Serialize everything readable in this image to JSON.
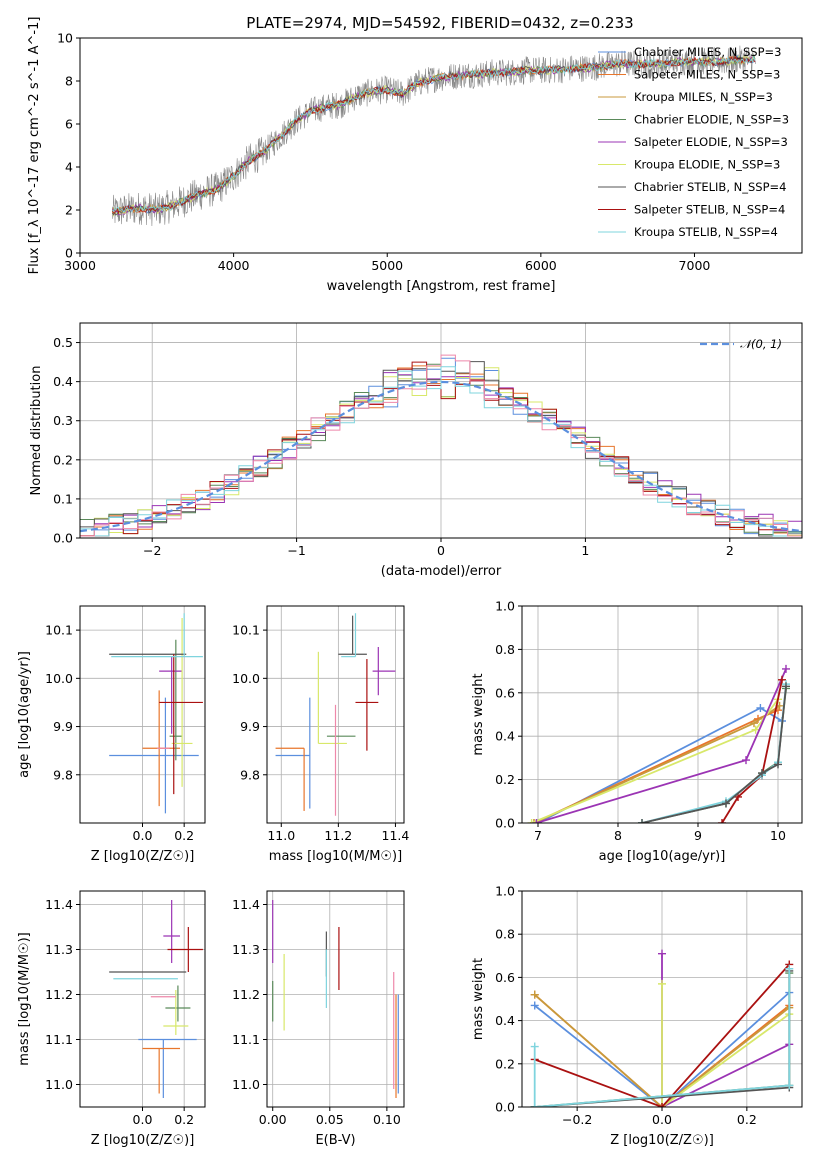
{
  "title": "PLATE=2974, MJD=54592, FIBERID=0432, z=0.233",
  "colors": {
    "blue": "#5b8fde",
    "orange": "#e8762c",
    "ochre": "#c89a3c",
    "green": "#5a8a5a",
    "purple": "#9b34b4",
    "lime": "#d8e86a",
    "gray": "#555555",
    "red": "#aa1111",
    "cyan": "#7fd4de",
    "pink": "#ee88aa",
    "spectrum": "#888888"
  },
  "chart_data": [
    {
      "id": "spectrum",
      "type": "line",
      "xlabel": "wavelength [Angstrom, rest frame]",
      "ylabel": "Flux [f_λ 10^-17 erg cm^-2 s^-1 A^-1]",
      "xlim": [
        3000,
        7700
      ],
      "ylim": [
        0,
        10
      ],
      "xticks": [
        3000,
        4000,
        5000,
        6000,
        7000
      ],
      "yticks": [
        0,
        2,
        4,
        6,
        8,
        10
      ],
      "grid": false,
      "legend_position": "right",
      "data_x_range": [
        3210,
        7400
      ],
      "anchors": {
        "x": [
          3210,
          3300,
          3400,
          3500,
          3600,
          3700,
          3800,
          3900,
          4000,
          4100,
          4200,
          4300,
          4400,
          4500,
          4600,
          4700,
          4800,
          4900,
          5000,
          5100,
          5200,
          5300,
          5400,
          5500,
          5600,
          5700,
          5800,
          5900,
          6000,
          6100,
          6200,
          6300,
          6400,
          6500,
          6600,
          6700,
          6800,
          6900,
          7000,
          7100,
          7200,
          7300,
          7400
        ],
        "y": [
          1.9,
          2.0,
          2.1,
          2.0,
          2.2,
          2.5,
          2.8,
          3.0,
          3.6,
          4.3,
          4.7,
          5.4,
          6.1,
          6.6,
          6.8,
          6.9,
          7.3,
          7.5,
          7.6,
          7.4,
          7.9,
          8.1,
          8.2,
          8.3,
          8.3,
          8.4,
          8.4,
          8.5,
          8.5,
          8.5,
          8.6,
          8.6,
          8.7,
          8.8,
          8.8,
          8.8,
          8.8,
          8.9,
          8.9,
          8.9,
          8.9,
          9.0,
          9.0
        ]
      },
      "legend": [
        {
          "label": "Chabrier MILES, N_SSP=3",
          "color": "#5b8fde"
        },
        {
          "label": "Salpeter MILES, N_SSP=3",
          "color": "#e8762c"
        },
        {
          "label": "Kroupa MILES, N_SSP=3",
          "color": "#c89a3c"
        },
        {
          "label": "Chabrier ELODIE, N_SSP=3",
          "color": "#5a8a5a"
        },
        {
          "label": "Salpeter ELODIE, N_SSP=3",
          "color": "#9b34b4"
        },
        {
          "label": "Kroupa ELODIE, N_SSP=3",
          "color": "#d8e86a"
        },
        {
          "label": "Chabrier STELIB, N_SSP=4",
          "color": "#555555"
        },
        {
          "label": "Salpeter STELIB, N_SSP=4",
          "color": "#aa1111"
        },
        {
          "label": "Kroupa STELIB, N_SSP=4",
          "color": "#7fd4de"
        }
      ]
    },
    {
      "id": "residuals",
      "type": "step",
      "xlabel": "(data-model)/error",
      "ylabel": "Normed distribution",
      "xlim": [
        -2.5,
        2.5
      ],
      "ylim": [
        0,
        0.55
      ],
      "xticks": [
        -2,
        -1,
        0,
        1,
        2
      ],
      "yticks": [
        0.0,
        0.1,
        0.2,
        0.3,
        0.4,
        0.5
      ],
      "grid": true,
      "legend": [
        {
          "label": "𝒩(0, 1)",
          "color": "#5b8fde",
          "style": "dashed"
        }
      ],
      "legend_position": "top-right",
      "bin_width": 0.1,
      "bin_start": -2.5,
      "step_colors": [
        "#5b8fde",
        "#e8762c",
        "#5a8a5a",
        "#9b34b4",
        "#d8e86a",
        "#555555",
        "#aa1111",
        "#7fd4de",
        "#ee88aa"
      ]
    },
    {
      "id": "age_vs_Z",
      "type": "errorbar",
      "xlabel": "Z [log10(Z/Z☉)]",
      "ylabel": "age  [log10(age/yr)]",
      "xlim": [
        -0.3,
        0.3
      ],
      "ylim": [
        9.7,
        10.15
      ],
      "xticks": [
        0.0,
        0.2
      ],
      "yticks": [
        9.8,
        9.9,
        10.0,
        10.1
      ],
      "grid": true,
      "points": [
        {
          "x": 0.11,
          "y": 9.84,
          "xerr": [
            0.27,
            0.16
          ],
          "yerr": [
            0.12,
            0.12
          ],
          "color": "#5b8fde"
        },
        {
          "x": 0.08,
          "y": 9.855,
          "xerr": [
            0.08,
            0.1
          ],
          "yerr": [
            0.12,
            0.12
          ],
          "color": "#e8762c"
        },
        {
          "x": 0.16,
          "y": 9.88,
          "xerr": [
            0.03,
            0.03
          ],
          "yerr": [
            0.05,
            0.2
          ],
          "color": "#5a8a5a"
        },
        {
          "x": 0.14,
          "y": 10.015,
          "xerr": [
            0.06,
            0.05
          ],
          "yerr": [
            0.13,
            0.03
          ],
          "color": "#9b34b4"
        },
        {
          "x": 0.19,
          "y": 9.865,
          "xerr": [
            0.05,
            0.05
          ],
          "yerr": [
            0.09,
            0.26
          ],
          "color": "#d8e86a"
        },
        {
          "x": 0.05,
          "y": 10.05,
          "xerr": [
            0.21,
            0.16
          ],
          "yerr": [
            0.0,
            0.0
          ],
          "color": "#555555"
        },
        {
          "x": 0.15,
          "y": 9.95,
          "xerr": [
            0.07,
            0.14
          ],
          "yerr": [
            0.19,
            0.1
          ],
          "color": "#aa1111"
        },
        {
          "x": 0.2,
          "y": 10.045,
          "xerr": [
            0.35,
            0.09
          ],
          "yerr": [
            0.0,
            0.09
          ],
          "color": "#7fd4de"
        },
        {
          "x": 0.1,
          "y": 9.855,
          "xerr": [
            0.03,
            0.03
          ],
          "yerr": [
            0.0,
            0.0
          ],
          "color": "#ee88aa"
        }
      ]
    },
    {
      "id": "age_vs_mass",
      "type": "errorbar",
      "xlabel": "mass [log10(M/M☉)]",
      "xlim": [
        10.95,
        11.43
      ],
      "ylim": [
        9.7,
        10.15
      ],
      "xticks": [
        11.0,
        11.2,
        11.4
      ],
      "yticks": [
        9.8,
        9.9,
        10.0,
        10.1
      ],
      "grid": true,
      "points": [
        {
          "x": 11.1,
          "y": 9.84,
          "xerr": [
            0.12,
            0.0
          ],
          "yerr": [
            0.11,
            0.12
          ],
          "color": "#5b8fde"
        },
        {
          "x": 11.08,
          "y": 9.855,
          "xerr": [
            0.1,
            0.0
          ],
          "yerr": [
            0.13,
            0.0
          ],
          "color": "#e8762c"
        },
        {
          "x": 11.2,
          "y": 9.88,
          "xerr": [
            0.04,
            0.06
          ],
          "yerr": [
            0.0,
            0.0
          ],
          "color": "#5a8a5a"
        },
        {
          "x": 11.34,
          "y": 10.015,
          "xerr": [
            0.02,
            0.06
          ],
          "yerr": [
            0.05,
            0.05
          ],
          "color": "#9b34b4"
        },
        {
          "x": 11.13,
          "y": 9.865,
          "xerr": [
            0.0,
            0.1
          ],
          "yerr": [
            0.0,
            0.19
          ],
          "color": "#d8e86a"
        },
        {
          "x": 11.25,
          "y": 10.05,
          "xerr": [
            0.05,
            0.05
          ],
          "yerr": [
            0.0,
            0.08
          ],
          "color": "#555555"
        },
        {
          "x": 11.3,
          "y": 9.95,
          "xerr": [
            0.04,
            0.04
          ],
          "yerr": [
            0.1,
            0.09
          ],
          "color": "#aa1111"
        },
        {
          "x": 11.26,
          "y": 10.045,
          "xerr": [
            0.05,
            0.0
          ],
          "yerr": [
            0.0,
            0.09
          ],
          "color": "#7fd4de"
        },
        {
          "x": 11.19,
          "y": 9.855,
          "xerr": [
            0.0,
            0.0
          ],
          "yerr": [
            0.14,
            0.09
          ],
          "color": "#ee88aa"
        }
      ]
    },
    {
      "id": "mass_weight_vs_age",
      "type": "line",
      "xlabel": "age  [log10(age/yr)]",
      "ylabel": "mass weight",
      "xlim": [
        6.8,
        10.3
      ],
      "ylim": [
        0,
        1
      ],
      "xticks": [
        7,
        8,
        9,
        10
      ],
      "yticks": [
        0.0,
        0.2,
        0.4,
        0.6,
        0.8,
        1.0
      ],
      "grid": true,
      "series": [
        {
          "color": "#5b8fde",
          "x": [
            7.0,
            9.78,
            10.05
          ],
          "y": [
            0.0,
            0.53,
            0.47
          ]
        },
        {
          "color": "#e8762c",
          "x": [
            6.95,
            9.75,
            10.0
          ],
          "y": [
            0.0,
            0.48,
            0.52
          ]
        },
        {
          "color": "#c89a3c",
          "x": [
            6.95,
            9.7,
            10.02
          ],
          "y": [
            0.0,
            0.46,
            0.54
          ]
        },
        {
          "color": "#d8e86a",
          "x": [
            6.92,
            9.72,
            10.0
          ],
          "y": [
            0.0,
            0.43,
            0.57
          ]
        },
        {
          "color": "#9b34b4",
          "x": [
            6.98,
            9.6,
            10.1
          ],
          "y": [
            0.0,
            0.29,
            0.71
          ]
        },
        {
          "color": "#aa1111",
          "x": [
            9.3,
            9.5,
            9.8,
            10.05
          ],
          "y": [
            0.0,
            0.12,
            0.22,
            0.66
          ]
        },
        {
          "color": "#5a8a5a",
          "x": [
            8.3,
            9.35,
            9.8,
            10.0,
            10.1
          ],
          "y": [
            0.0,
            0.09,
            0.23,
            0.28,
            0.62
          ]
        },
        {
          "color": "#7fd4de",
          "x": [
            8.3,
            9.35,
            9.8,
            10.0,
            10.1
          ],
          "y": [
            0.0,
            0.1,
            0.22,
            0.28,
            0.64
          ]
        },
        {
          "color": "#555555",
          "x": [
            8.3,
            9.35,
            9.8,
            10.0,
            10.1
          ],
          "y": [
            0.0,
            0.09,
            0.23,
            0.27,
            0.63
          ]
        }
      ]
    },
    {
      "id": "mass_vs_Z",
      "type": "errorbar",
      "xlabel": "Z [log10(Z/Z☉)]",
      "ylabel": "mass [log10(M/M☉)]",
      "xlim": [
        -0.3,
        0.3
      ],
      "ylim": [
        10.95,
        11.43
      ],
      "xticks": [
        0.0,
        0.2
      ],
      "yticks": [
        11.0,
        11.1,
        11.2,
        11.3,
        11.4
      ],
      "grid": true,
      "points": [
        {
          "x": 0.1,
          "y": 11.1,
          "xerr": [
            0.12,
            0.16
          ],
          "yerr": [
            0.13,
            0.0
          ],
          "color": "#5b8fde"
        },
        {
          "x": 0.08,
          "y": 11.08,
          "xerr": [
            0.08,
            0.1
          ],
          "yerr": [
            0.1,
            0.0
          ],
          "color": "#e8762c"
        },
        {
          "x": 0.17,
          "y": 11.17,
          "xerr": [
            0.06,
            0.06
          ],
          "yerr": [
            0.03,
            0.05
          ],
          "color": "#5a8a5a"
        },
        {
          "x": 0.14,
          "y": 11.33,
          "xerr": [
            0.04,
            0.04
          ],
          "yerr": [
            0.06,
            0.08
          ],
          "color": "#9b34b4"
        },
        {
          "x": 0.16,
          "y": 11.13,
          "xerr": [
            0.06,
            0.06
          ],
          "yerr": [
            0.02,
            0.08
          ],
          "color": "#d8e86a"
        },
        {
          "x": 0.05,
          "y": 11.25,
          "xerr": [
            0.21,
            0.16
          ],
          "yerr": [
            0.0,
            0.0
          ],
          "color": "#555555"
        },
        {
          "x": 0.22,
          "y": 11.3,
          "xerr": [
            0.1,
            0.07
          ],
          "yerr": [
            0.05,
            0.05
          ],
          "color": "#aa1111"
        },
        {
          "x": 0.07,
          "y": 11.235,
          "xerr": [
            0.21,
            0.1
          ],
          "yerr": [
            0.0,
            0.0
          ],
          "color": "#7fd4de"
        },
        {
          "x": 0.1,
          "y": 11.195,
          "xerr": [
            0.06,
            0.06
          ],
          "yerr": [
            0.0,
            0.0
          ],
          "color": "#ee88aa"
        }
      ]
    },
    {
      "id": "mass_vs_EBV",
      "type": "errorbar",
      "xlabel": "E(B-V)",
      "xlim": [
        -0.005,
        0.115
      ],
      "ylim": [
        10.95,
        11.43
      ],
      "xticks": [
        0.0,
        0.05,
        0.1
      ],
      "yticks": [
        11.0,
        11.1,
        11.2,
        11.3,
        11.4
      ],
      "grid": true,
      "points": [
        {
          "x": 0.0,
          "y": 11.2,
          "xerr": [
            0,
            0
          ],
          "yerr": [
            0.06,
            0.03
          ],
          "color": "#5a8a5a"
        },
        {
          "x": 0.0,
          "y": 11.33,
          "xerr": [
            0,
            0
          ],
          "yerr": [
            0.06,
            0.08
          ],
          "color": "#9b34b4"
        },
        {
          "x": 0.01,
          "y": 11.2,
          "xerr": [
            0,
            0
          ],
          "yerr": [
            0.08,
            0.09
          ],
          "color": "#d8e86a"
        },
        {
          "x": 0.047,
          "y": 11.27,
          "xerr": [
            0,
            0
          ],
          "yerr": [
            0.03,
            0.07
          ],
          "color": "#555555"
        },
        {
          "x": 0.047,
          "y": 11.23,
          "xerr": [
            0,
            0
          ],
          "yerr": [
            0.06,
            0.07
          ],
          "color": "#7fd4de"
        },
        {
          "x": 0.058,
          "y": 11.28,
          "xerr": [
            0,
            0
          ],
          "yerr": [
            0.07,
            0.07
          ],
          "color": "#aa1111"
        },
        {
          "x": 0.106,
          "y": 11.16,
          "xerr": [
            0,
            0
          ],
          "yerr": [
            0.17,
            0.09
          ],
          "color": "#ee88aa"
        },
        {
          "x": 0.108,
          "y": 11.08,
          "xerr": [
            0,
            0
          ],
          "yerr": [
            0.11,
            0.12
          ],
          "color": "#e8762c"
        },
        {
          "x": 0.11,
          "y": 11.1,
          "xerr": [
            0,
            0
          ],
          "yerr": [
            0.12,
            0.1
          ],
          "color": "#5b8fde"
        }
      ]
    },
    {
      "id": "mass_weight_vs_Z",
      "type": "line",
      "xlabel": "Z [log10(Z/Z☉)]",
      "ylabel": "mass weight",
      "xlim": [
        -0.33,
        0.33
      ],
      "ylim": [
        0,
        1
      ],
      "xticks": [
        -0.2,
        0.0,
        0.2
      ],
      "yticks": [
        0.0,
        0.2,
        0.4,
        0.6,
        0.8,
        1.0
      ],
      "grid": true,
      "series": [
        {
          "color": "#5b8fde",
          "x": [
            -0.3,
            0.0,
            0.3
          ],
          "y": [
            0.47,
            0.0,
            0.53
          ]
        },
        {
          "color": "#e8762c",
          "x": [
            -0.3,
            0.0,
            0.3
          ],
          "y": [
            0.52,
            0.0,
            0.47
          ]
        },
        {
          "color": "#c89a3c",
          "x": [
            -0.3,
            0.0,
            0.3
          ],
          "y": [
            0.52,
            0.0,
            0.46
          ]
        },
        {
          "color": "#9b34b4",
          "x": [
            0.0,
            0.0,
            0.3
          ],
          "y": [
            0.71,
            0.0,
            0.29
          ]
        },
        {
          "color": "#d8e86a",
          "x": [
            0.0,
            0.0,
            0.3
          ],
          "y": [
            0.57,
            0.0,
            0.43
          ]
        },
        {
          "color": "#aa1111",
          "x": [
            -0.3,
            0.0,
            0.3
          ],
          "y": [
            0.22,
            0.0,
            0.66
          ]
        },
        {
          "color": "#555555",
          "x": [
            -0.3,
            0.3,
            0.3
          ],
          "y": [
            0.0,
            0.09,
            0.63
          ]
        },
        {
          "color": "#5a8a5a",
          "x": [
            -0.3,
            0.3,
            0.3
          ],
          "y": [
            0.0,
            0.1,
            0.62
          ]
        },
        {
          "color": "#7fd4de",
          "x": [
            -0.3,
            -0.3,
            0.3,
            0.3
          ],
          "y": [
            0.28,
            0.0,
            0.1,
            0.64
          ]
        }
      ]
    }
  ]
}
